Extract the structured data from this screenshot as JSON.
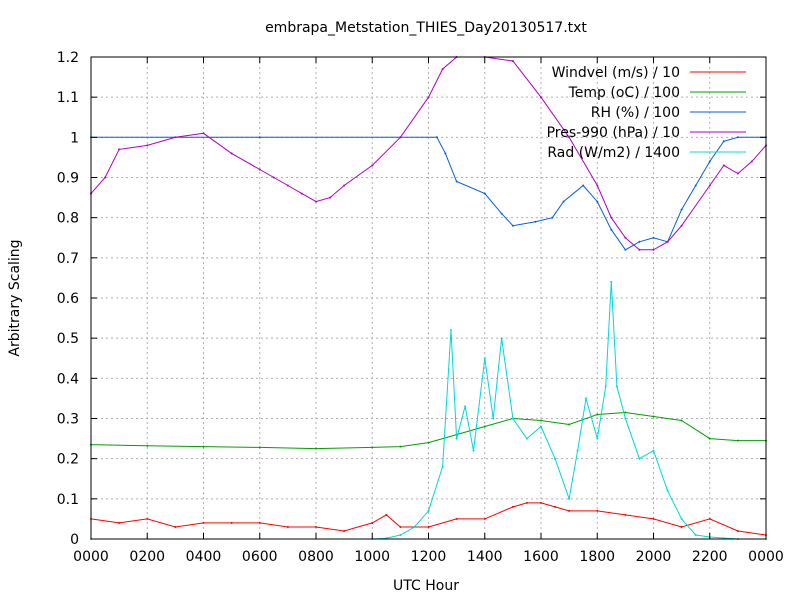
{
  "chart_data": {
    "type": "line",
    "title": "embrapa_Metstation_THIES_Day20130517.txt",
    "xlabel": "UTC Hour",
    "ylabel": "Arbitrary Scaling",
    "xlim": [
      0,
      24
    ],
    "ylim": [
      0,
      1.2
    ],
    "grid": true,
    "legend_position": "top-right",
    "x_tick_labels": [
      "0000",
      "0200",
      "0400",
      "0600",
      "0800",
      "1000",
      "1200",
      "1400",
      "1600",
      "1800",
      "2000",
      "2200",
      "0000"
    ],
    "y_tick_labels": [
      "0",
      "0.1",
      "0.2",
      "0.3",
      "0.4",
      "0.5",
      "0.6",
      "0.7",
      "0.8",
      "0.9",
      "1",
      "1.1",
      "1.2"
    ],
    "series": [
      {
        "name": "Windvel (m/s) / 10",
        "color": "#ff0000",
        "x": [
          0,
          1,
          2,
          3,
          4,
          5,
          6,
          7,
          8,
          9,
          10,
          10.5,
          11,
          12,
          13,
          14,
          15,
          15.5,
          16,
          16.5,
          17,
          18,
          19,
          20,
          21,
          22,
          23,
          24
        ],
        "y": [
          0.05,
          0.04,
          0.05,
          0.03,
          0.04,
          0.04,
          0.04,
          0.03,
          0.03,
          0.02,
          0.04,
          0.06,
          0.03,
          0.03,
          0.05,
          0.05,
          0.08,
          0.09,
          0.09,
          0.08,
          0.07,
          0.07,
          0.06,
          0.05,
          0.03,
          0.05,
          0.02,
          0.01
        ]
      },
      {
        "name": "Temp (oC) / 100",
        "color": "#00a000",
        "x": [
          0,
          2,
          4,
          6,
          8,
          10,
          11,
          12,
          13,
          14,
          15,
          16,
          17,
          18,
          19,
          20,
          21,
          22,
          23,
          24
        ],
        "y": [
          0.235,
          0.232,
          0.23,
          0.228,
          0.225,
          0.228,
          0.23,
          0.24,
          0.26,
          0.28,
          0.3,
          0.295,
          0.285,
          0.31,
          0.315,
          0.305,
          0.295,
          0.25,
          0.245,
          0.245
        ]
      },
      {
        "name": "RH (%) / 100",
        "color": "#0060e0",
        "x": [
          0,
          6,
          12.3,
          12.6,
          13,
          14,
          14.6,
          15,
          15.8,
          16.4,
          16.8,
          17.5,
          18,
          18.5,
          19,
          19.5,
          20,
          20.5,
          21,
          21.5,
          22,
          22.5,
          23,
          24
        ],
        "y": [
          1.0,
          1.0,
          1.0,
          0.96,
          0.89,
          0.86,
          0.81,
          0.78,
          0.79,
          0.8,
          0.84,
          0.88,
          0.84,
          0.77,
          0.72,
          0.74,
          0.75,
          0.74,
          0.82,
          0.88,
          0.94,
          0.99,
          1.0,
          1.0
        ]
      },
      {
        "name": "Pres-990 (hPa) / 10",
        "color": "#b000c0",
        "x": [
          0,
          0.5,
          1,
          2,
          3,
          4,
          5,
          6,
          6.5,
          7,
          7.5,
          8,
          8.5,
          9,
          10,
          11,
          12,
          12.5,
          13,
          14,
          15,
          16,
          17,
          18,
          18.5,
          19,
          19.5,
          20,
          20.5,
          21,
          22,
          22.5,
          23,
          23.5,
          24
        ],
        "y": [
          0.86,
          0.9,
          0.97,
          0.98,
          1.0,
          1.01,
          0.96,
          0.92,
          0.9,
          0.88,
          0.86,
          0.84,
          0.85,
          0.88,
          0.93,
          1.0,
          1.1,
          1.17,
          1.2,
          1.2,
          1.19,
          1.1,
          1.0,
          0.88,
          0.8,
          0.75,
          0.72,
          0.72,
          0.74,
          0.78,
          0.88,
          0.93,
          0.91,
          0.94,
          0.98
        ]
      },
      {
        "name": "Rad (W/m2) / 1400",
        "color": "#00d8d8",
        "x": [
          0,
          10,
          10.5,
          11,
          11.5,
          12,
          12.5,
          12.8,
          13,
          13.3,
          13.6,
          14,
          14.3,
          14.6,
          15,
          15.5,
          16,
          16.5,
          17,
          17.3,
          17.6,
          18,
          18.3,
          18.5,
          18.7,
          19,
          19.5,
          20,
          20.5,
          21,
          21.5,
          22,
          23,
          24
        ],
        "y": [
          0,
          0,
          0.002,
          0.01,
          0.03,
          0.07,
          0.18,
          0.52,
          0.25,
          0.33,
          0.22,
          0.45,
          0.3,
          0.5,
          0.3,
          0.25,
          0.28,
          0.2,
          0.1,
          0.22,
          0.35,
          0.25,
          0.38,
          0.64,
          0.38,
          0.3,
          0.2,
          0.22,
          0.12,
          0.05,
          0.01,
          0.005,
          0,
          0
        ]
      }
    ]
  }
}
